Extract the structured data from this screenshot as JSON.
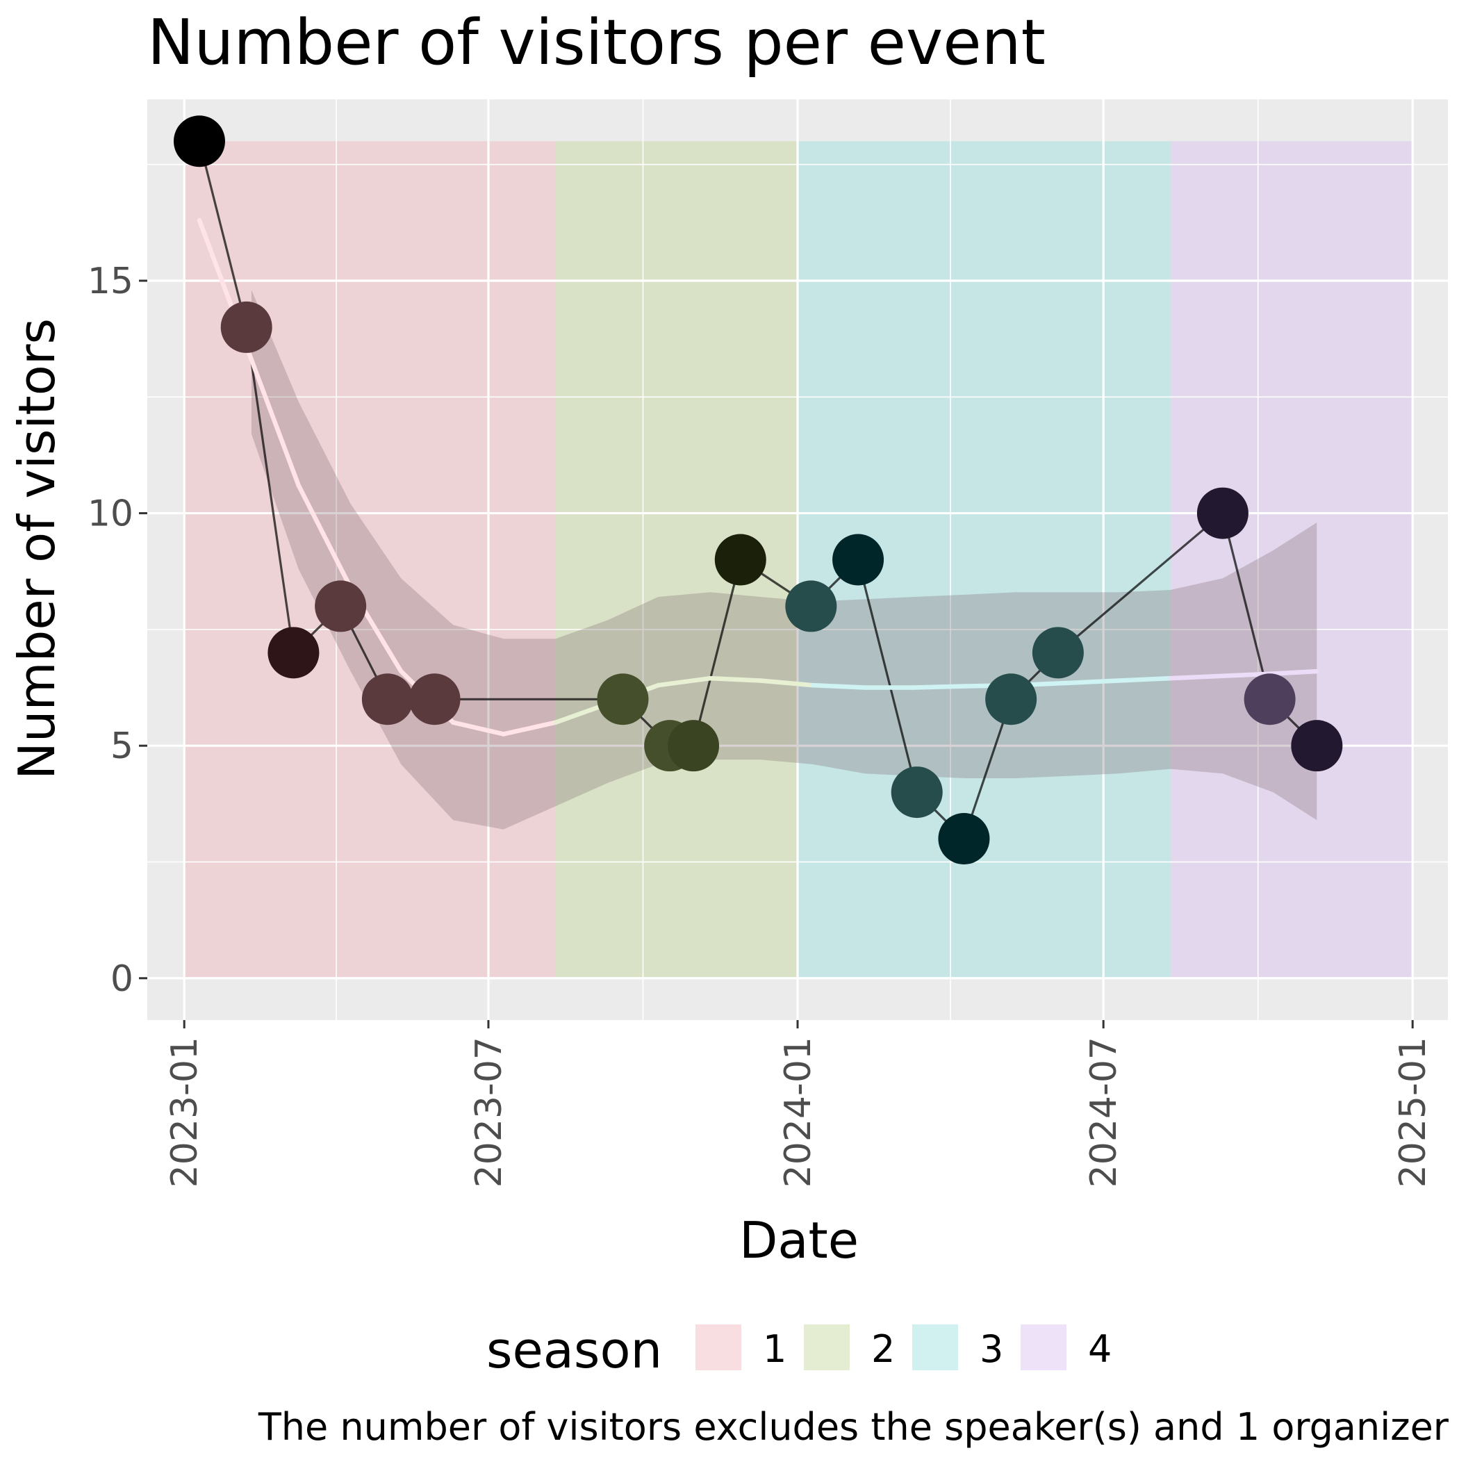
{
  "chart_data": {
    "type": "line",
    "title": "Number of visitors per event",
    "xlabel": "Date",
    "ylabel": "Number of visitors",
    "caption": "The number of visitors excludes the speaker(s) and 1 organizer",
    "legend_title": "season",
    "legend_position": "bottom",
    "grid": true,
    "x_type": "date",
    "xlim": [
      "2022-12-10",
      "2025-01-22"
    ],
    "ylim": [
      -0.9,
      18.9
    ],
    "x_ticks": [
      "2023-01",
      "2023-07",
      "2024-01",
      "2024-07",
      "2025-01"
    ],
    "x_tick_dates": [
      "2023-01-01",
      "2023-07-01",
      "2024-01-01",
      "2024-07-01",
      "2025-01-01"
    ],
    "y_ticks": [
      0,
      5,
      10,
      15
    ],
    "y_tick_labels": [
      "0",
      "5",
      "10",
      "15"
    ],
    "seasons": [
      {
        "label": "1",
        "start": "2023-01-01",
        "end": "2023-08-10",
        "fill": "#F2B6BC"
      },
      {
        "label": "2",
        "start": "2023-08-10",
        "end": "2024-01-01",
        "fill": "#C4D89A"
      },
      {
        "label": "3",
        "start": "2024-01-01",
        "end": "2024-08-10",
        "fill": "#99E0E0"
      },
      {
        "label": "4",
        "start": "2024-08-10",
        "end": "2025-01-01",
        "fill": "#D6BFEE"
      }
    ],
    "season_top": 18,
    "series": [
      {
        "x": [
          "2023-01-10",
          "2023-02-07",
          "2023-03-07",
          "2023-04-04",
          "2023-05-02",
          "2023-05-30",
          "2023-09-19",
          "2023-10-17",
          "2023-10-31",
          "2023-11-28",
          "2024-01-09",
          "2024-02-06",
          "2024-03-12",
          "2024-04-09",
          "2024-05-07",
          "2024-06-04",
          "2024-09-10",
          "2024-10-08",
          "2024-11-05"
        ],
        "values": [
          18,
          14,
          7,
          8,
          6,
          6,
          6,
          5,
          5,
          9,
          8,
          9,
          4,
          3,
          6,
          7,
          10,
          6,
          5
        ],
        "season": [
          "1",
          "1",
          "1",
          "1",
          "1",
          "1",
          "2",
          "2",
          "2",
          "2",
          "3",
          "3",
          "3",
          "3",
          "3",
          "3",
          "4",
          "4",
          "4"
        ],
        "point_colors": [
          "#000000",
          "#5A3A3C",
          "#2E1518",
          "#5A3A3C",
          "#5A3A3C",
          "#5A3A3C",
          "#454F2C",
          "#454F2C",
          "#3A4322",
          "#1A200A",
          "#264C4C",
          "#00262A",
          "#264C4C",
          "#00262A",
          "#264C4C",
          "#264C4C",
          "#221830",
          "#4E3F5C",
          "#221830"
        ]
      }
    ],
    "smooth": {
      "x": [
        "2023-01-10",
        "2023-02-10",
        "2023-03-10",
        "2023-04-10",
        "2023-05-10",
        "2023-06-10",
        "2023-07-10",
        "2023-08-10",
        "2023-09-10",
        "2023-10-10",
        "2023-11-10",
        "2023-12-10",
        "2024-01-10",
        "2024-02-10",
        "2024-03-10",
        "2024-04-10",
        "2024-05-10",
        "2024-06-10",
        "2024-07-10",
        "2024-08-10",
        "2024-09-10",
        "2024-10-10",
        "2024-11-05"
      ],
      "y": [
        16.3,
        13.3,
        10.6,
        8.4,
        6.6,
        5.5,
        5.25,
        5.5,
        5.9,
        6.3,
        6.45,
        6.4,
        6.3,
        6.25,
        6.25,
        6.28,
        6.3,
        6.35,
        6.4,
        6.45,
        6.5,
        6.55,
        6.6
      ],
      "lower": [
        16.3,
        11.7,
        8.8,
        6.6,
        4.6,
        3.4,
        3.2,
        3.7,
        4.2,
        4.6,
        4.7,
        4.7,
        4.6,
        4.4,
        4.35,
        4.3,
        4.3,
        4.35,
        4.4,
        4.5,
        4.4,
        4.0,
        3.4
      ],
      "upper": [
        16.3,
        14.8,
        12.4,
        10.2,
        8.6,
        7.6,
        7.3,
        7.3,
        7.7,
        8.2,
        8.3,
        8.2,
        8.1,
        8.15,
        8.2,
        8.25,
        8.3,
        8.3,
        8.3,
        8.35,
        8.6,
        9.2,
        9.8
      ],
      "ribbon_color": "#7F6A70",
      "line_colors": [
        "#FFE3E6",
        "#E8F0D4",
        "#CFF2F2",
        "#EBDDF7"
      ]
    },
    "colors": {
      "panel": "#EBEBEB",
      "grid": "#FFFFFF",
      "path": "#000000"
    }
  }
}
